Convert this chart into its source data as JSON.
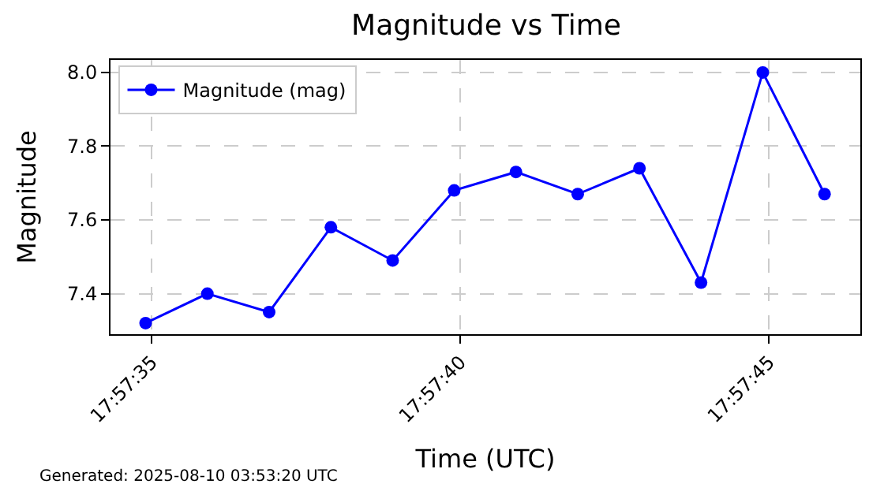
{
  "chart_data": {
    "type": "line",
    "title": "Magnitude vs Time",
    "xlabel": "Time (UTC)",
    "ylabel": "Magnitude",
    "x": [
      17.959694,
      17.959972,
      17.96025,
      17.960528,
      17.960806,
      17.961083,
      17.961361,
      17.961639,
      17.961917,
      17.962194,
      17.962472,
      17.96275
    ],
    "series": [
      {
        "name": "Magnitude (mag)",
        "color": "#0000ff",
        "values": [
          7.32,
          7.4,
          7.35,
          7.58,
          7.49,
          7.68,
          7.73,
          7.67,
          7.74,
          7.43,
          8.0,
          7.67
        ]
      }
    ],
    "xlim": [
      17.959536,
      17.962911
    ],
    "xticks": [
      {
        "value": 17.959722,
        "label": "17:57:35"
      },
      {
        "value": 17.961111,
        "label": "17:57:40"
      },
      {
        "value": 17.9625,
        "label": "17:57:45"
      }
    ],
    "ylim": [
      7.29,
      8.034
    ],
    "yticks": [
      7.4,
      7.6,
      7.8,
      {
        "value": 8,
        "label": "8.0"
      }
    ],
    "grid": true,
    "legend": "top left",
    "marker": "circle",
    "line_style": "solid",
    "annotations": [
      "Generated: 2025-08-10 03:53:20 UTC"
    ]
  }
}
